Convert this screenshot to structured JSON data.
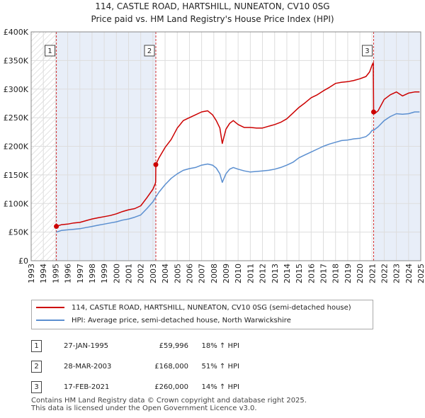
{
  "chart_data": {
    "type": "line",
    "title": "114, CASTLE ROAD, HARTSHILL, NUNEATON, CV10 0SG",
    "subtitle": "Price paid vs. HM Land Registry's House Price Index (HPI)",
    "xlim": [
      1993,
      2025
    ],
    "ylim": [
      0,
      400000
    ],
    "y_ticks": [
      0,
      50000,
      100000,
      150000,
      200000,
      250000,
      300000,
      350000,
      400000
    ],
    "y_tick_labels": [
      "£0",
      "£50K",
      "£100K",
      "£150K",
      "£200K",
      "£250K",
      "£300K",
      "£350K",
      "£400K"
    ],
    "x_ticks": [
      1993,
      1994,
      1995,
      1996,
      1997,
      1998,
      1999,
      2000,
      2001,
      2002,
      2003,
      2004,
      2005,
      2006,
      2007,
      2008,
      2009,
      2010,
      2011,
      2012,
      2013,
      2014,
      2015,
      2016,
      2017,
      2018,
      2019,
      2020,
      2021,
      2022,
      2023,
      2024,
      2025
    ],
    "x_tick_labels": [
      "1993",
      "1994",
      "1995",
      "1996",
      "1997",
      "1998",
      "1999",
      "2000",
      "2001",
      "2002",
      "2003",
      "2004",
      "2005",
      "2006",
      "2007",
      "2008",
      "2009",
      "2010",
      "2011",
      "2012",
      "2013",
      "2014",
      "2015",
      "2016",
      "2017",
      "2018",
      "2019",
      "2020",
      "2021",
      "2022",
      "2023",
      "2024",
      "2025"
    ],
    "grid": true,
    "hatched_range_before": 1995.07,
    "series": [
      {
        "name": "114, CASTLE ROAD, HARTSHILL, NUNEATON, CV10 0SG (semi-detached house)",
        "color": "#cc0000",
        "x": [
          1995.07,
          1995.5,
          1996,
          1996.5,
          1997,
          1997.5,
          1998,
          1998.5,
          1999,
          1999.5,
          2000,
          2000.5,
          2001,
          2001.5,
          2002,
          2002.5,
          2003.0,
          2003.2,
          2003.23,
          2003.24,
          2003.5,
          2004,
          2004.5,
          2005,
          2005.5,
          2006,
          2006.5,
          2007,
          2007.5,
          2007.9,
          2008.2,
          2008.5,
          2008.7,
          2009,
          2009.3,
          2009.6,
          2010,
          2010.5,
          2011,
          2011.5,
          2012,
          2012.5,
          2013,
          2013.5,
          2014,
          2014.5,
          2015,
          2015.5,
          2016,
          2016.5,
          2017,
          2017.5,
          2018,
          2018.5,
          2019,
          2019.5,
          2020,
          2020.5,
          2020.8,
          2021.0,
          2021.1,
          2021.13,
          2021.2,
          2021.5,
          2022,
          2022.5,
          2023,
          2023.5,
          2024,
          2024.5,
          2024.9
        ],
        "values": [
          59996,
          63000,
          64000,
          66000,
          67000,
          70000,
          73000,
          75000,
          77000,
          79000,
          82000,
          86000,
          89000,
          91000,
          96000,
          110000,
          125000,
          135000,
          138000,
          168000,
          180000,
          198000,
          212000,
          232000,
          245000,
          250000,
          255000,
          260000,
          262000,
          255000,
          245000,
          232000,
          205000,
          230000,
          240000,
          245000,
          238000,
          233000,
          233000,
          232000,
          232000,
          235000,
          238000,
          242000,
          248000,
          258000,
          268000,
          276000,
          285000,
          290000,
          297000,
          303000,
          310000,
          312000,
          313000,
          315000,
          318000,
          322000,
          330000,
          342000,
          346000,
          260000,
          257000,
          262000,
          282000,
          290000,
          295000,
          288000,
          293000,
          295000,
          295000
        ]
      },
      {
        "name": "HPI: Average price, semi-detached house, North Warwickshire",
        "color": "#5b8fd0",
        "x": [
          1995.07,
          1995.5,
          1996,
          1996.5,
          1997,
          1997.5,
          1998,
          1998.5,
          1999,
          1999.5,
          2000,
          2000.5,
          2001,
          2001.5,
          2002,
          2002.5,
          2003.0,
          2003.23,
          2003.5,
          2004,
          2004.5,
          2005,
          2005.5,
          2006,
          2006.5,
          2007,
          2007.5,
          2007.9,
          2008.2,
          2008.5,
          2008.7,
          2009,
          2009.3,
          2009.6,
          2010,
          2010.5,
          2011,
          2011.5,
          2012,
          2012.5,
          2013,
          2013.5,
          2014,
          2014.5,
          2015,
          2015.5,
          2016,
          2016.5,
          2017,
          2017.5,
          2018,
          2018.5,
          2019,
          2019.5,
          2020,
          2020.5,
          2020.8,
          2021.0,
          2021.13,
          2021.5,
          2022,
          2022.5,
          2023,
          2023.5,
          2024,
          2024.5,
          2024.9
        ],
        "values": [
          50000,
          53000,
          54000,
          55000,
          56000,
          58000,
          60000,
          62000,
          64000,
          66000,
          68000,
          71000,
          73000,
          76000,
          80000,
          91000,
          103000,
          111000,
          120000,
          133000,
          144000,
          152000,
          158000,
          161000,
          163000,
          167000,
          169000,
          167000,
          162000,
          152000,
          137000,
          152000,
          160000,
          163000,
          160000,
          157000,
          155000,
          156000,
          157000,
          158000,
          160000,
          163000,
          167000,
          172000,
          180000,
          185000,
          190000,
          195000,
          200000,
          204000,
          207000,
          210000,
          211000,
          213000,
          214000,
          217000,
          222000,
          228000,
          228000,
          234000,
          245000,
          252000,
          257000,
          256000,
          257000,
          260000,
          260000
        ]
      }
    ],
    "sales": [
      {
        "index": "1",
        "x": 1995.07,
        "value": 59996
      },
      {
        "index": "2",
        "x": 2003.24,
        "value": 168000
      },
      {
        "index": "3",
        "x": 2021.13,
        "value": 260000
      }
    ]
  },
  "legend": {
    "entries": [
      {
        "label": "114, CASTLE ROAD, HARTSHILL, NUNEATON, CV10 0SG (semi-detached house)",
        "color": "#cc0000"
      },
      {
        "label": "HPI: Average price, semi-detached house, North Warwickshire",
        "color": "#5b8fd0"
      }
    ]
  },
  "sales_table": {
    "rows": [
      {
        "index": "1",
        "date": "27-JAN-1995",
        "price": "£59,996",
        "hpi": "18% ↑ HPI"
      },
      {
        "index": "2",
        "date": "28-MAR-2003",
        "price": "£168,000",
        "hpi": "51% ↑ HPI"
      },
      {
        "index": "3",
        "date": "17-FEB-2021",
        "price": "£260,000",
        "hpi": "14% ↑ HPI"
      }
    ]
  },
  "footer": {
    "line1": "Contains HM Land Registry data © Crown copyright and database right 2025.",
    "line2": "This data is licensed under the Open Government Licence v3.0."
  }
}
